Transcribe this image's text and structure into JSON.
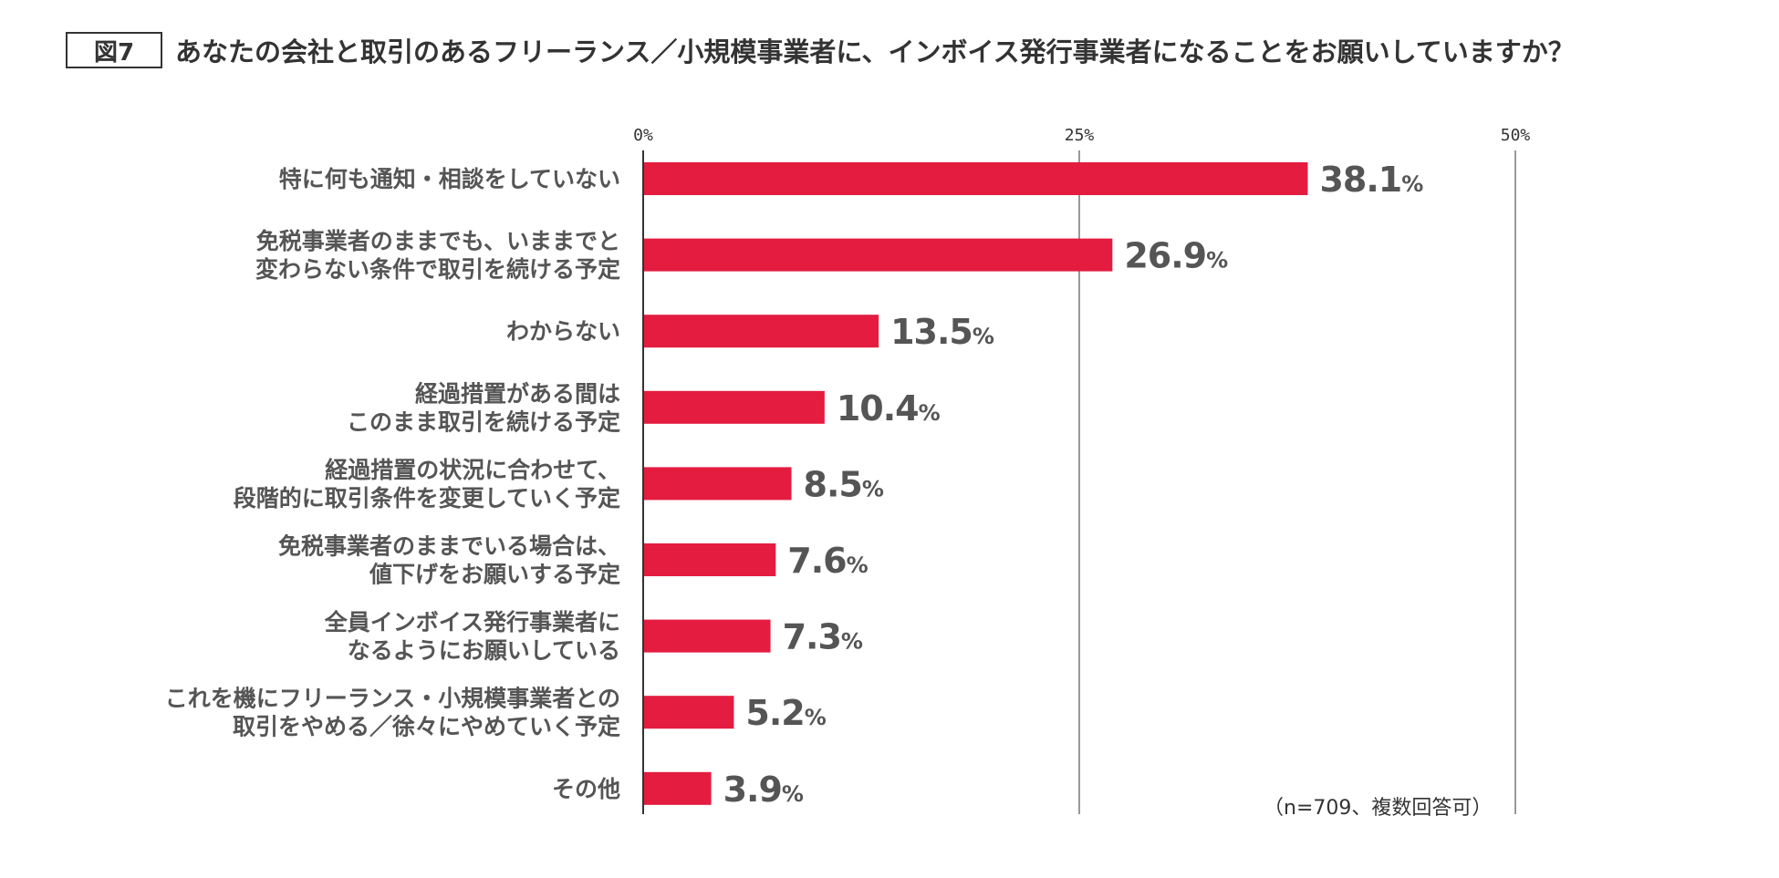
{
  "figure_tag": "図7",
  "title": "あなたの会社と取引のあるフリーランス／小規模事業者に、インボイス発行事業者になることをお願いしていますか？",
  "note": "（n=709、複数回答可）",
  "chart_data": {
    "type": "bar",
    "orientation": "horizontal",
    "title": "あなたの会社と取引のあるフリーランス／小規模事業者に、インボイス発行事業者になることをお願いしていますか？",
    "xlim": [
      0,
      50
    ],
    "xticks": [
      0,
      25,
      50
    ],
    "xtick_labels": [
      "0%",
      "25%",
      "50%"
    ],
    "grid": true,
    "legend": "none",
    "bar_color": "#e31c40",
    "value_suffix": "%",
    "categories": [
      [
        "特に何も通知・相談をしていない"
      ],
      [
        "免税事業者のままでも、いままでと",
        "変わらない条件で取引を続ける予定"
      ],
      [
        "わからない"
      ],
      [
        "経過措置がある間は",
        "このまま取引を続ける予定"
      ],
      [
        "経過措置の状況に合わせて、",
        "段階的に取引条件を変更していく予定"
      ],
      [
        "免税事業者のままでいる場合は、",
        "値下げをお願いする予定"
      ],
      [
        "全員インボイス発行事業者に",
        "なるようにお願いしている"
      ],
      [
        "これを機にフリーランス・小規模事業者との",
        "取引をやめる／徐々にやめていく予定"
      ],
      [
        "その他"
      ]
    ],
    "values": [
      38.1,
      26.9,
      13.5,
      10.4,
      8.5,
      7.6,
      7.3,
      5.2,
      3.9
    ],
    "value_labels": [
      "38.1",
      "26.9",
      "13.5",
      "10.4",
      "8.5",
      "7.6",
      "7.3",
      "5.2",
      "3.9"
    ]
  }
}
